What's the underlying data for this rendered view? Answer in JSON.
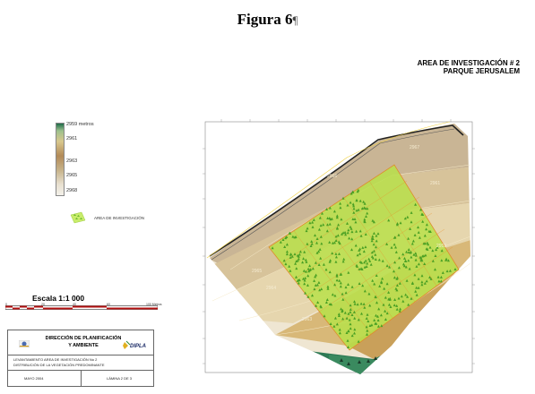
{
  "figure": {
    "title": "Figura 6",
    "pilcrow": "¶"
  },
  "area_title": {
    "line1": "AREA DE INVESTIGACIÓN # 2",
    "line2": "PARQUE JERUSALEM"
  },
  "legend": {
    "items": [
      {
        "label": "2959 metros"
      },
      {
        "label": "2961"
      },
      {
        "label": "2963"
      },
      {
        "label": "2965"
      },
      {
        "label": "2968"
      }
    ],
    "area_label": "AREA DE INVESTIGACIÓN"
  },
  "scale": {
    "title": "Escala 1:1 000",
    "ticks": [
      "0",
      "20",
      "40",
      "60",
      "100 Metros"
    ]
  },
  "title_block": {
    "org_line1": "DIRECCIÓN DE PLANIFICACIÓN",
    "org_line2": "Y AMBIENTE",
    "brand": "DIPLA",
    "desc_line1": "LEVANTAMIENTO AREA DE INVESTIGACIÓN No 2",
    "desc_line2": "DISTRIBUCIÓN DE LA VEGETACIÓN PREDOMINANTE",
    "date": "MAYO 2004",
    "sheet": "LÁMINA 2 DE 3"
  },
  "map": {
    "contour_labels": [
      "2965",
      "2964",
      "2963",
      "2966",
      "2961",
      "2959",
      "2967"
    ],
    "colors": {
      "forest_green": "#1e6b49",
      "tan_dark": "#b28a58",
      "tan_light": "#d8c08a",
      "beige": "#e6d8b8",
      "area_fill": "#b8e04a",
      "area_border": "#e08a2a",
      "tree": "#4aa024",
      "road": "#222222"
    }
  }
}
